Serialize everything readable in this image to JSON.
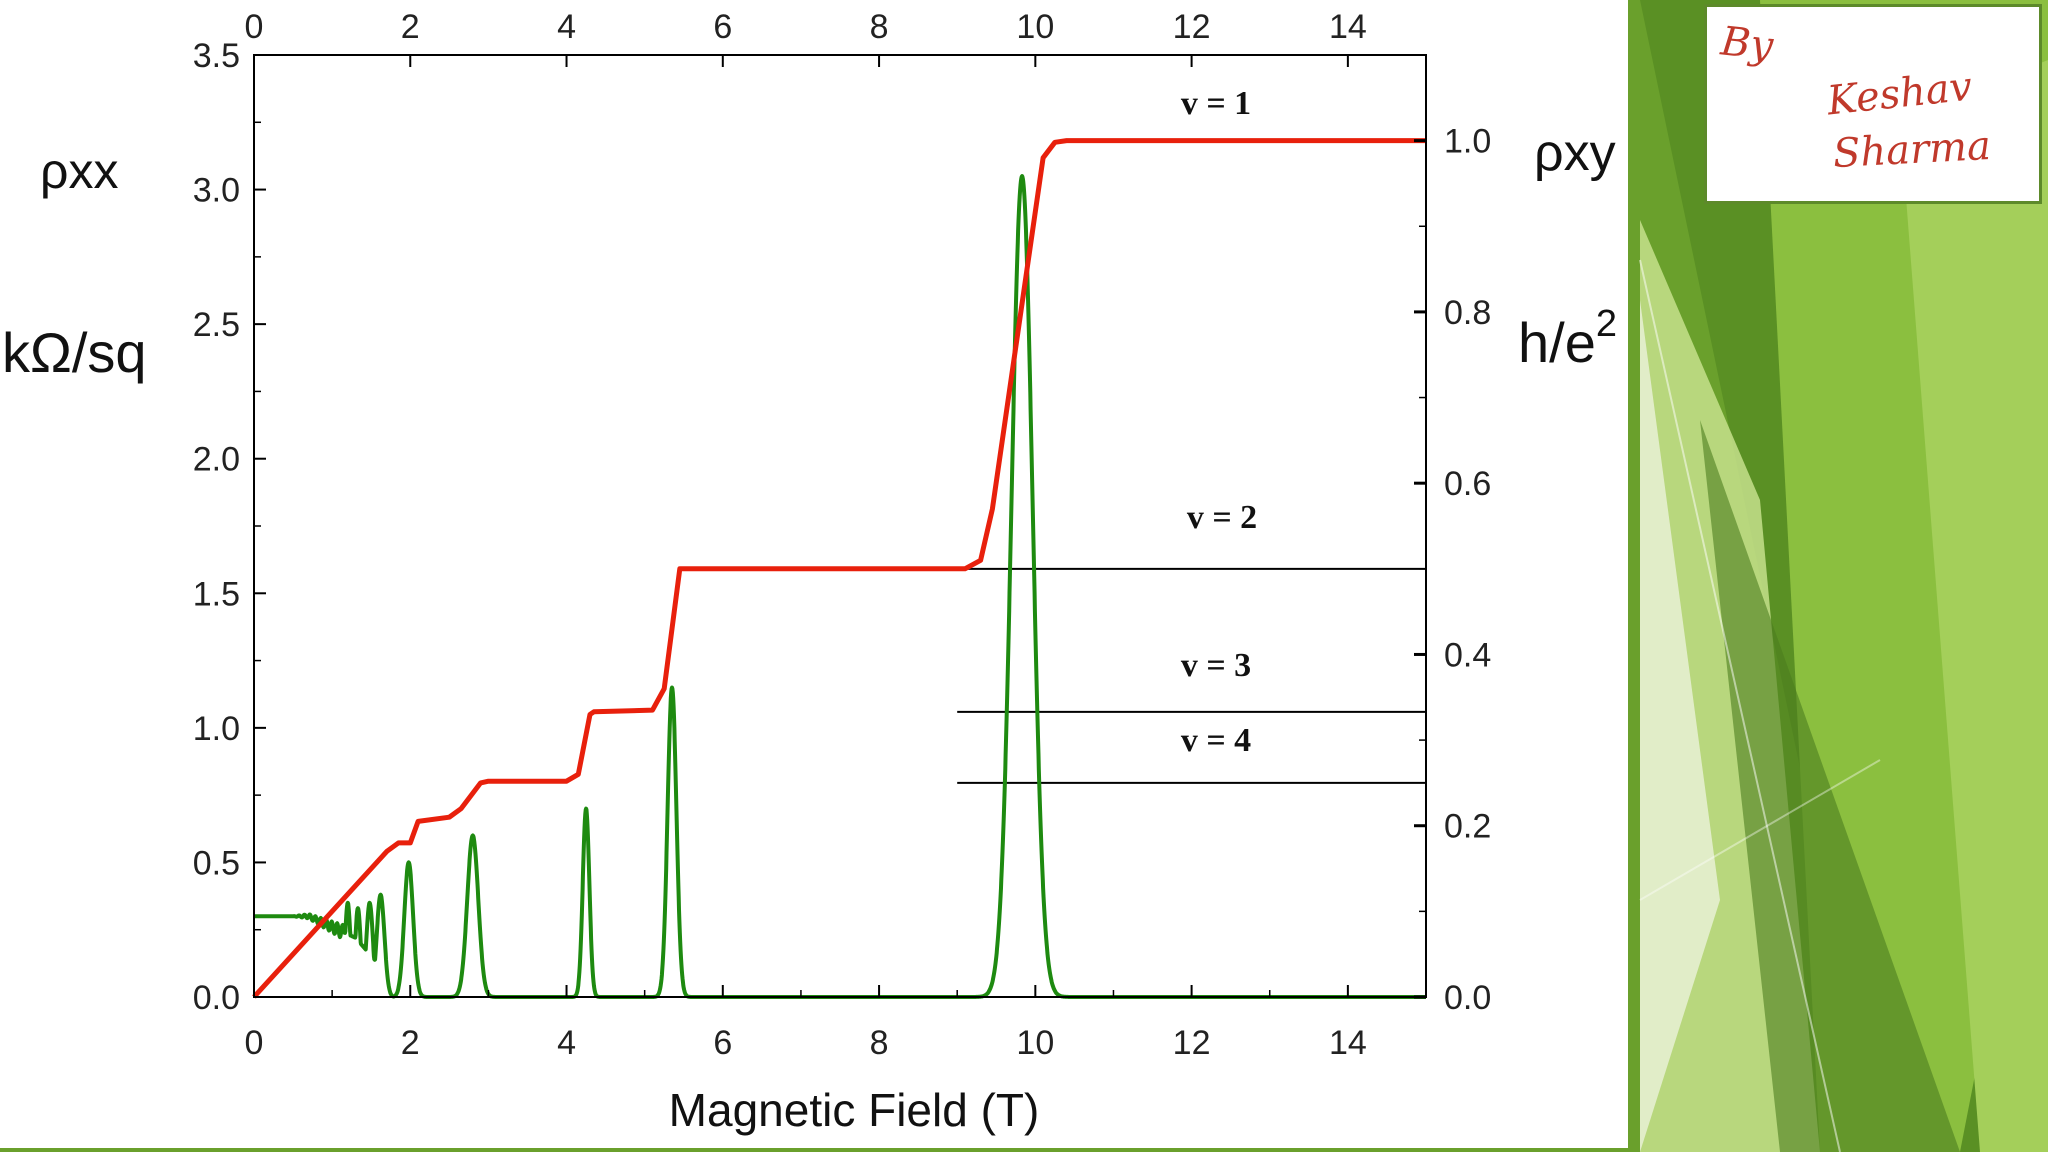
{
  "chart_data": {
    "type": "line",
    "xlabel": "Magnetic Field  (T)",
    "x_ticks": [
      "0",
      "2",
      "4",
      "6",
      "8",
      "10",
      "12",
      "14"
    ],
    "xlim": [
      0,
      15
    ],
    "left_axis": {
      "label_symbol": "ρxx",
      "label_unit": "kΩ/sq",
      "ylim": [
        0,
        3.5
      ],
      "ticks": [
        "0.0",
        "0.5",
        "1.0",
        "1.5",
        "2.0",
        "2.5",
        "3.0",
        "3.5"
      ]
    },
    "right_axis": {
      "label_symbol": "ρxy",
      "label_unit": "h/e2",
      "ylim": [
        0,
        1.1
      ],
      "ticks": [
        "0.0",
        "0.2",
        "0.4",
        "0.6",
        "0.8",
        "1.0"
      ]
    },
    "series": [
      {
        "axis": "right",
        "color": "#e8200c",
        "x": [
          0,
          1.7,
          1.85,
          2.0,
          2.1,
          2.5,
          2.65,
          2.9,
          3.0,
          4.0,
          4.15,
          4.3,
          4.35,
          5.1,
          5.25,
          5.35,
          5.45,
          9.1,
          9.3,
          9.45,
          10.1,
          10.25,
          10.4,
          15
        ],
        "y": [
          0,
          0.17,
          0.18,
          0.18,
          0.205,
          0.21,
          0.22,
          0.25,
          0.252,
          0.252,
          0.26,
          0.33,
          0.333,
          0.335,
          0.36,
          0.43,
          0.5,
          0.5,
          0.51,
          0.57,
          0.98,
          0.998,
          1.0,
          1.0
        ]
      },
      {
        "axis": "left",
        "color": "#1e8a10",
        "baseline": [
          [
            0,
            0.3
          ],
          [
            0.7,
            0.3
          ],
          [
            1.3,
            0.22
          ],
          [
            1.6,
            0.12
          ],
          [
            1.75,
            0.0
          ]
        ],
        "peaks": [
          {
            "x": 1.2,
            "height": 0.35,
            "width": 0.05
          },
          {
            "x": 1.33,
            "height": 0.33,
            "width": 0.05
          },
          {
            "x": 1.48,
            "height": 0.35,
            "width": 0.06
          },
          {
            "x": 1.62,
            "height": 0.38,
            "width": 0.07
          },
          {
            "x": 1.98,
            "height": 0.5,
            "width": 0.08
          },
          {
            "x": 2.8,
            "height": 0.6,
            "width": 0.1
          },
          {
            "x": 4.25,
            "height": 0.7,
            "width": 0.06
          },
          {
            "x": 5.35,
            "height": 1.15,
            "width": 0.08
          },
          {
            "x": 9.83,
            "height": 3.05,
            "width": 0.19
          }
        ]
      }
    ],
    "reference_lines": [
      {
        "y": 0.5,
        "label": "v = 2"
      },
      {
        "y": 0.333,
        "label": "v = 3"
      },
      {
        "y": 0.25,
        "label": "v = 4"
      }
    ],
    "annotations": [
      {
        "label": "v = 1",
        "x": 12.3,
        "y": 1.04
      }
    ]
  },
  "badge": {
    "line1": "By",
    "line2": "Keshav",
    "line3": "Sharma"
  },
  "colors": {
    "slide_green": "#6aa02c",
    "slide_green_light": "#a4cf5a",
    "slide_green_dark": "#4b7d1e"
  }
}
